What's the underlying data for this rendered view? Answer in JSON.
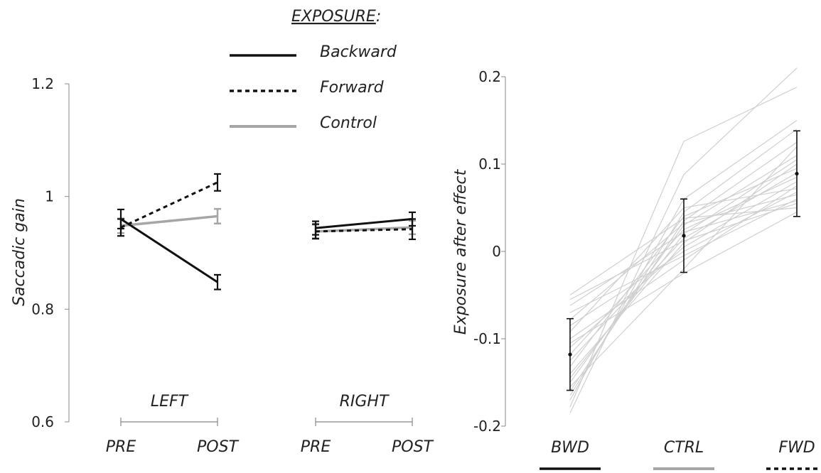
{
  "legend": {
    "title": "EXPOSURE",
    "title_suffix": ":",
    "entries": [
      {
        "name": "Backward",
        "color": "#111111",
        "dash": "solid"
      },
      {
        "name": "Forward",
        "color": "#111111",
        "dash": "dotted"
      },
      {
        "name": "Control",
        "color": "#a6a6a6",
        "dash": "solid"
      }
    ]
  },
  "chart_data": [
    {
      "type": "line",
      "ylabel": "Saccadic gain",
      "ylim": [
        0.6,
        1.2
      ],
      "yticks": [
        "0.6",
        "0.8",
        "1",
        "1.2"
      ],
      "panels": [
        {
          "group": "LEFT",
          "x": [
            "PRE",
            "POST"
          ],
          "series": [
            {
              "name": "Backward",
              "values": [
                0.96,
                0.848
              ],
              "errors": [
                0.017,
                0.013
              ]
            },
            {
              "name": "Forward",
              "values": [
                0.945,
                1.025
              ],
              "errors": [
                0.015,
                0.015
              ]
            },
            {
              "name": "Control",
              "values": [
                0.948,
                0.965
              ],
              "errors": [
                0.013,
                0.013
              ]
            }
          ]
        },
        {
          "group": "RIGHT",
          "x": [
            "PRE",
            "POST"
          ],
          "series": [
            {
              "name": "Backward",
              "values": [
                0.944,
                0.96
              ],
              "errors": [
                0.012,
                0.012
              ]
            },
            {
              "name": "Forward",
              "values": [
                0.938,
                0.942
              ],
              "errors": [
                0.013,
                0.018
              ]
            },
            {
              "name": "Control",
              "values": [
                0.938,
                0.945
              ],
              "errors": [
                0.012,
                0.012
              ]
            }
          ]
        }
      ]
    },
    {
      "type": "line",
      "ylabel": "Exposure after effect",
      "ylim": [
        -0.2,
        0.2
      ],
      "yticks": [
        "-0.2",
        "-0.1",
        "0",
        "0.1",
        "0.2"
      ],
      "categories": [
        "BWD",
        "CTRL",
        "FWD"
      ],
      "category_styles": [
        {
          "color": "#111111",
          "dash": "solid"
        },
        {
          "color": "#a6a6a6",
          "dash": "solid"
        },
        {
          "color": "#111111",
          "dash": "dotted"
        }
      ],
      "mean": {
        "values": [
          -0.118,
          0.018,
          0.089
        ],
        "errors": [
          0.041,
          0.042,
          0.049
        ]
      },
      "individuals": [
        [
          -0.185,
          0.088,
          0.21
        ],
        [
          -0.178,
          0.126,
          0.188
        ],
        [
          -0.17,
          0.06,
          0.15
        ],
        [
          -0.165,
          0.045,
          0.14
        ],
        [
          -0.16,
          0.035,
          0.125
        ],
        [
          -0.155,
          -0.02,
          0.12
        ],
        [
          -0.15,
          0.03,
          0.11
        ],
        [
          -0.145,
          0.02,
          0.105
        ],
        [
          -0.14,
          0.01,
          0.1
        ],
        [
          -0.132,
          0.04,
          0.095
        ],
        [
          -0.125,
          0.015,
          0.09
        ],
        [
          -0.118,
          0.025,
          0.085
        ],
        [
          -0.11,
          0.005,
          0.08
        ],
        [
          -0.1,
          -0.01,
          0.075
        ],
        [
          -0.092,
          0.05,
          0.072
        ],
        [
          -0.085,
          0.0,
          0.068
        ],
        [
          -0.078,
          0.032,
          0.065
        ],
        [
          -0.07,
          -0.005,
          0.06
        ],
        [
          -0.062,
          0.022,
          0.058
        ],
        [
          -0.055,
          0.012,
          0.055
        ],
        [
          -0.05,
          0.038,
          0.05
        ],
        [
          -0.105,
          -0.025,
          0.045
        ]
      ]
    }
  ]
}
